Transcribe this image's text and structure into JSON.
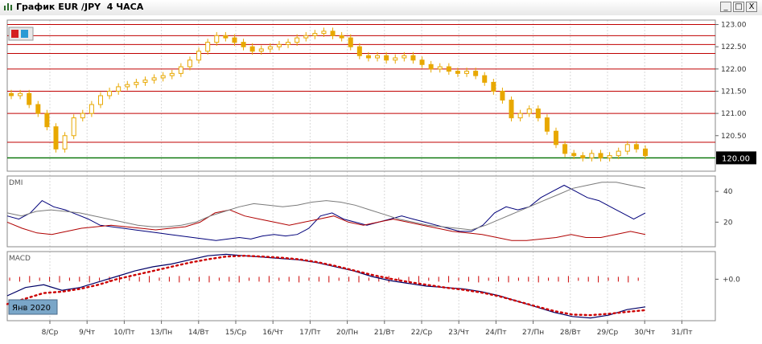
{
  "window": {
    "title": "График EUR /JPY  4 ЧАСА",
    "minimize_glyph": "_",
    "maximize_glyph": "□",
    "close_glyph": "X"
  },
  "panel_labels": {
    "dmi": "DMI",
    "macd": "MACD"
  },
  "date_badge": "Янв 2020",
  "colors": {
    "candle": "#e8a800",
    "level": "#c00000",
    "support": "#007000",
    "dmi_plus": "#00007a",
    "dmi_minus": "#b00000",
    "adx": "#7a7a7a",
    "macd_line": "#000066",
    "macd_signal": "#cc0000",
    "histogram": "#cc0000"
  },
  "chart_data": [
    {
      "type": "candlestick",
      "title": "",
      "x_ticks": [
        "8/Ср",
        "9/Чт",
        "10/Пт",
        "13/Пн",
        "14/Вт",
        "15/Ср",
        "16/Чт",
        "17/Пт",
        "20/Пн",
        "21/Вт",
        "22/Ср",
        "23/Чт",
        "24/Пт",
        "27/Пн",
        "28/Вт",
        "29/Ср",
        "30/Чт",
        "31/Пт"
      ],
      "y_ticks": [
        "123.00",
        "122.50",
        "122.00",
        "121.50",
        "121.00",
        "120.50"
      ],
      "current_price": "120.00",
      "ylim": [
        119.7,
        123.1
      ],
      "horizontal_levels": [
        123.0,
        122.75,
        122.55,
        122.35,
        122.0,
        121.5,
        121.0,
        120.35
      ],
      "support_level": 120.0,
      "close_series": [
        121.4,
        121.45,
        121.2,
        121.0,
        120.7,
        120.2,
        120.5,
        120.9,
        121.0,
        121.2,
        121.4,
        121.5,
        121.6,
        121.65,
        121.7,
        121.75,
        121.8,
        121.85,
        121.9,
        122.05,
        122.2,
        122.4,
        122.6,
        122.75,
        122.7,
        122.6,
        122.5,
        122.4,
        122.45,
        122.5,
        122.55,
        122.6,
        122.7,
        122.75,
        122.8,
        122.85,
        122.75,
        122.7,
        122.5,
        122.3,
        122.25,
        122.3,
        122.2,
        122.25,
        122.3,
        122.2,
        122.1,
        122.0,
        122.05,
        121.95,
        121.9,
        121.95,
        121.85,
        121.7,
        121.5,
        121.3,
        120.9,
        121.0,
        121.1,
        120.9,
        120.6,
        120.3,
        120.1,
        120.05,
        120.0,
        120.1,
        120.0,
        120.05,
        120.15,
        120.3,
        120.2,
        120.05
      ]
    },
    {
      "type": "line",
      "title": "",
      "y_ticks": [
        "40",
        "20"
      ],
      "ylim": [
        4,
        50
      ],
      "series": [
        {
          "key": "plus",
          "values": [
            24,
            22,
            26,
            34,
            30,
            28,
            25,
            22,
            18,
            17,
            16,
            15,
            14,
            13,
            12,
            11,
            10,
            9,
            8,
            9,
            10,
            9,
            11,
            12,
            11,
            12,
            16,
            24,
            26,
            22,
            20,
            18,
            20,
            22,
            24,
            22,
            20,
            18,
            16,
            14,
            14,
            18,
            26,
            30,
            28,
            30,
            36,
            40,
            44,
            40,
            36,
            34,
            30,
            26,
            22,
            26
          ]
        },
        {
          "key": "minus",
          "values": [
            20,
            16,
            13,
            12,
            14,
            16,
            17,
            18,
            17,
            16,
            15,
            16,
            17,
            20,
            26,
            28,
            24,
            22,
            20,
            18,
            20,
            22,
            24,
            20,
            18,
            20,
            22,
            20,
            18,
            16,
            14,
            13,
            12,
            10,
            8,
            8,
            9,
            10,
            12,
            10,
            10,
            12,
            14,
            12
          ]
        },
        {
          "key": "adx",
          "values": [
            26,
            24,
            27,
            28,
            27,
            26,
            24,
            22,
            20,
            18,
            17,
            17,
            18,
            20,
            24,
            27,
            30,
            32,
            31,
            30,
            31,
            33,
            34,
            33,
            31,
            28,
            25,
            22,
            20,
            18,
            17,
            16,
            15,
            18,
            22,
            26,
            30,
            34,
            38,
            42,
            44,
            46,
            46,
            44,
            42
          ]
        }
      ]
    },
    {
      "type": "line",
      "title": "",
      "y_ticks": [
        "+0.0"
      ],
      "ylim": [
        -1.5,
        1.0
      ],
      "series": [
        {
          "key": "macd",
          "values": [
            -0.6,
            -0.3,
            -0.2,
            -0.4,
            -0.3,
            -0.1,
            0.1,
            0.3,
            0.45,
            0.55,
            0.7,
            0.85,
            0.9,
            0.85,
            0.8,
            0.75,
            0.7,
            0.6,
            0.45,
            0.3,
            0.1,
            -0.05,
            -0.15,
            -0.25,
            -0.3,
            -0.35,
            -0.45,
            -0.6,
            -0.8,
            -1.0,
            -1.2,
            -1.35,
            -1.4,
            -1.3,
            -1.1,
            -1.0
          ]
        },
        {
          "key": "signal",
          "values": [
            -0.9,
            -0.7,
            -0.5,
            -0.45,
            -0.35,
            -0.2,
            0.0,
            0.15,
            0.3,
            0.45,
            0.6,
            0.72,
            0.82,
            0.85,
            0.82,
            0.78,
            0.72,
            0.62,
            0.48,
            0.32,
            0.16,
            0.02,
            -0.1,
            -0.2,
            -0.3,
            -0.38,
            -0.48,
            -0.62,
            -0.8,
            -0.98,
            -1.15,
            -1.28,
            -1.3,
            -1.25,
            -1.18,
            -1.12
          ]
        }
      ]
    }
  ]
}
